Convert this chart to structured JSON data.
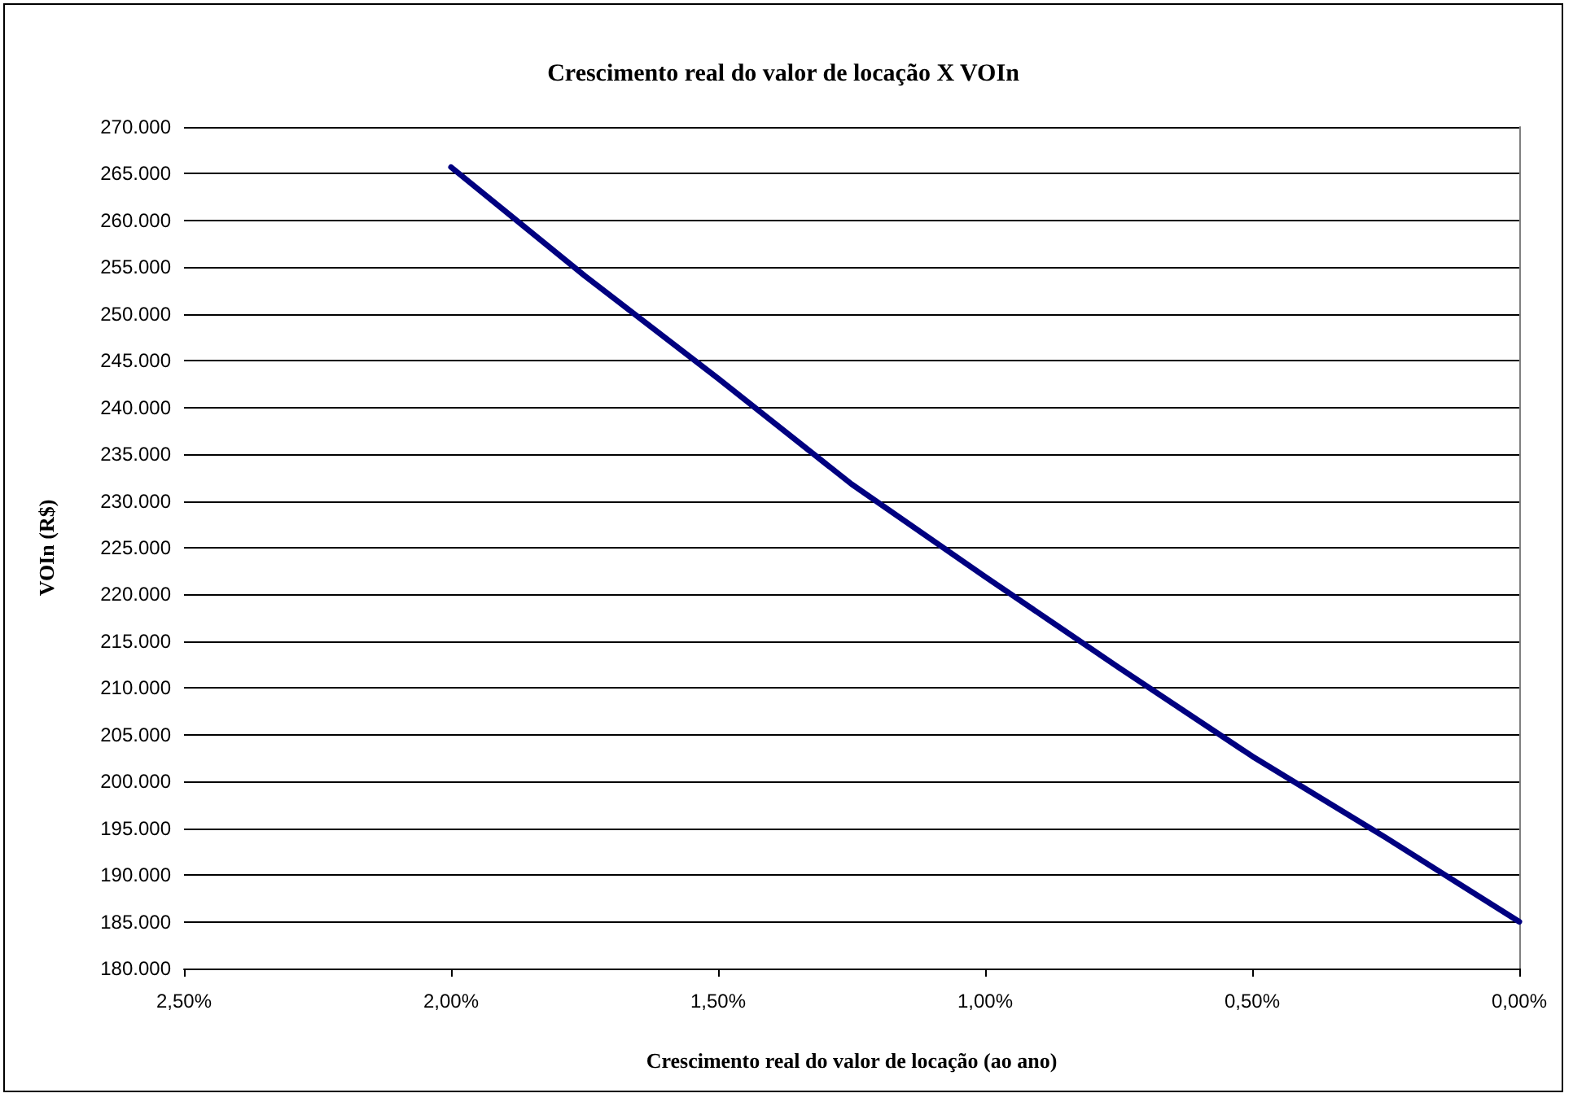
{
  "chart_data": {
    "type": "line",
    "title": "Crescimento real do valor de locação X VOIn",
    "xlabel": "Crescimento real do valor de locação (ao ano)",
    "ylabel": "VOIn (R$)",
    "x": [
      0,
      0.25,
      0.5,
      0.75,
      1,
      1.25,
      1.5,
      1.75,
      2
    ],
    "series": [
      {
        "color": "#000080",
        "values": [
          185000,
          194000,
          202700,
          212200,
          221900,
          231800,
          243100,
          254100,
          265700
        ]
      }
    ],
    "xlim": [
      2.5,
      0
    ],
    "xticks": [
      {
        "value": 2.5,
        "label": "2,50%"
      },
      {
        "value": 2,
        "label": "2,00%"
      },
      {
        "value": 1.5,
        "label": "1,50%"
      },
      {
        "value": 1,
        "label": "1,00%"
      },
      {
        "value": 0.5,
        "label": "0,50%"
      },
      {
        "value": 0,
        "label": "0,00%"
      }
    ],
    "ylim": [
      180000,
      270000
    ],
    "yticks": [
      {
        "value": 180000,
        "label": "180.000"
      },
      {
        "value": 185000,
        "label": "185.000"
      },
      {
        "value": 190000,
        "label": "190.000"
      },
      {
        "value": 195000,
        "label": "195.000"
      },
      {
        "value": 200000,
        "label": "200.000"
      },
      {
        "value": 205000,
        "label": "205.000"
      },
      {
        "value": 210000,
        "label": "210.000"
      },
      {
        "value": 215000,
        "label": "215.000"
      },
      {
        "value": 220000,
        "label": "220.000"
      },
      {
        "value": 225000,
        "label": "225.000"
      },
      {
        "value": 230000,
        "label": "230.000"
      },
      {
        "value": 235000,
        "label": "235.000"
      },
      {
        "value": 240000,
        "label": "240.000"
      },
      {
        "value": 245000,
        "label": "245.000"
      },
      {
        "value": 250000,
        "label": "250.000"
      },
      {
        "value": 255000,
        "label": "255.000"
      },
      {
        "value": 260000,
        "label": "260.000"
      },
      {
        "value": 265000,
        "label": "265.000"
      },
      {
        "value": 270000,
        "label": "270.000"
      }
    ],
    "grid": "y",
    "marker": "none",
    "line_style": "solid"
  }
}
